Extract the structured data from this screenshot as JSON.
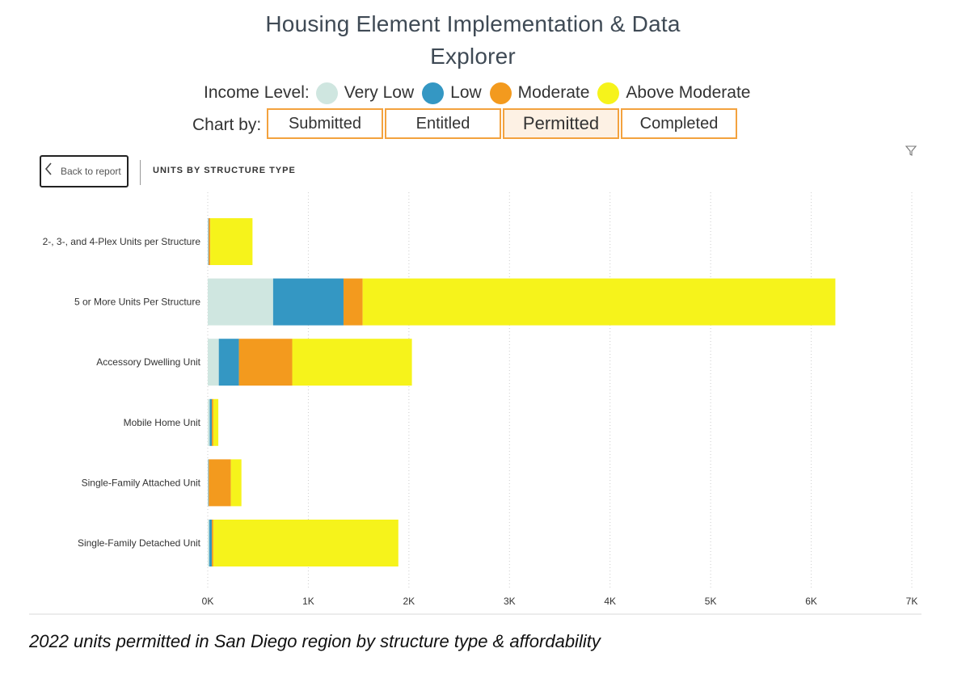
{
  "header": {
    "title_line1": "Housing Element Implementation & Data",
    "title_line2": "Explorer"
  },
  "legend": {
    "label": "Income Level:",
    "items": [
      {
        "label": "Very Low",
        "color": "#cfe6e0"
      },
      {
        "label": "Low",
        "color": "#3497c3"
      },
      {
        "label": "Moderate",
        "color": "#f39a1e"
      },
      {
        "label": "Above Moderate",
        "color": "#f6f31b"
      }
    ]
  },
  "chart_by": {
    "label": "Chart by:",
    "tabs": [
      "Submitted",
      "Entitled",
      "Permitted",
      "Completed"
    ],
    "active": "Permitted"
  },
  "toolbar": {
    "back_label": "Back to report",
    "visual_title": "UNITS BY STRUCTURE TYPE",
    "filter_icon": "filter-icon"
  },
  "chart_data": {
    "type": "bar",
    "orientation": "horizontal",
    "stacked": true,
    "categories": [
      "2-, 3-, and 4-Plex Units per Structure",
      "5 or More Units Per Structure",
      "Accessory Dwelling Unit",
      "Mobile Home Unit",
      "Single-Family Attached Unit",
      "Single-Family Detached Unit"
    ],
    "series": [
      {
        "name": "Very Low",
        "color": "#cfe6e0",
        "values": [
          5,
          650,
          110,
          20,
          5,
          15
        ]
      },
      {
        "name": "Low",
        "color": "#3497c3",
        "values": [
          5,
          700,
          200,
          20,
          5,
          25
        ]
      },
      {
        "name": "Moderate",
        "color": "#f39a1e",
        "values": [
          15,
          190,
          530,
          15,
          220,
          15
        ]
      },
      {
        "name": "Above Moderate",
        "color": "#f6f31b",
        "values": [
          420,
          4700,
          1190,
          50,
          105,
          1840
        ]
      }
    ],
    "xlim": [
      0,
      7000
    ],
    "xticks": [
      "0K",
      "1K",
      "2K",
      "3K",
      "4K",
      "5K",
      "6K",
      "7K"
    ],
    "grid": true
  },
  "caption": "2022 units permitted in San Diego region by structure type & affordability"
}
